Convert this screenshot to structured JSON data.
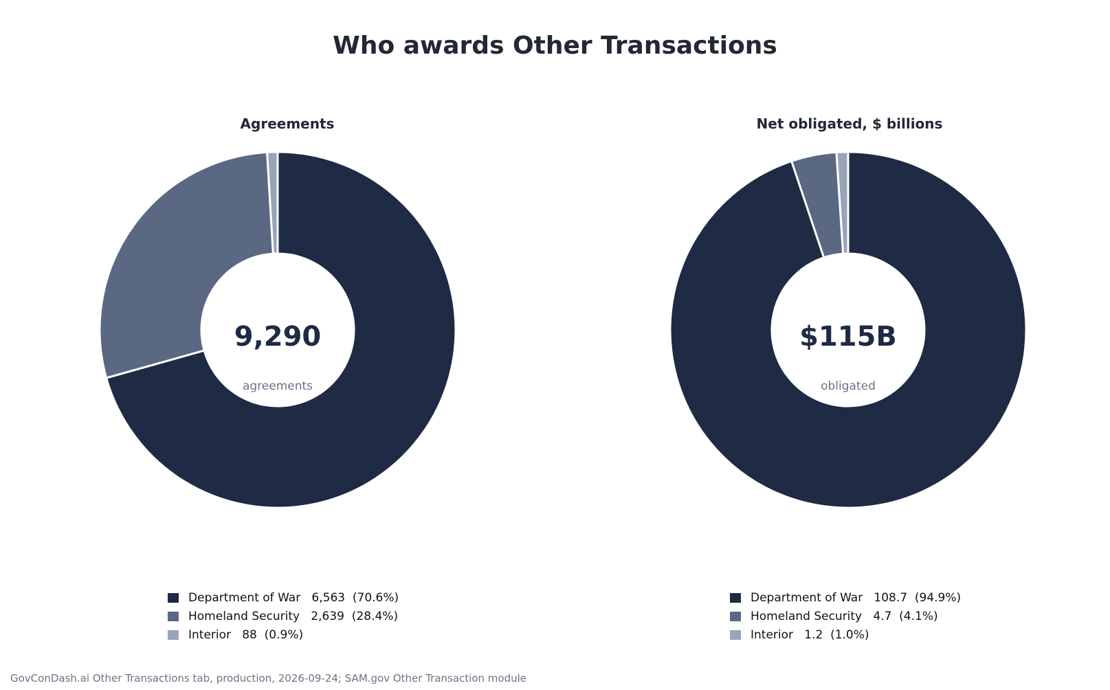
{
  "title": "Who awards Other Transactions",
  "footer": "GovConDash.ai Other Transactions tab, production, 2026-09-24; SAM.gov Other Transaction module",
  "colors": {
    "Department of War": "#1f2a44",
    "Homeland Security": "#5a6883",
    "Interior": "#9aa4b9"
  },
  "chart_data": [
    {
      "type": "pie",
      "title": "Agreements",
      "center_value": "9,290",
      "center_label": "agreements",
      "slices": [
        {
          "label": "Department of War",
          "value": 6563,
          "value_text": "6,563",
          "percent_text": "(70.6%)"
        },
        {
          "label": "Homeland Security",
          "value": 2639,
          "value_text": "2,639",
          "percent_text": "(28.4%)"
        },
        {
          "label": "Interior",
          "value": 88,
          "value_text": "88",
          "percent_text": "(0.9%)"
        }
      ]
    },
    {
      "type": "pie",
      "title": "Net obligated, $ billions",
      "center_value": "$115B",
      "center_label": "obligated",
      "slices": [
        {
          "label": "Department of War",
          "value": 108.7,
          "value_text": "108.7",
          "percent_text": "(94.9%)"
        },
        {
          "label": "Homeland Security",
          "value": 4.7,
          "value_text": "4.7",
          "percent_text": "(4.1%)"
        },
        {
          "label": "Interior",
          "value": 1.2,
          "value_text": "1.2",
          "percent_text": "(1.0%)"
        }
      ]
    }
  ]
}
